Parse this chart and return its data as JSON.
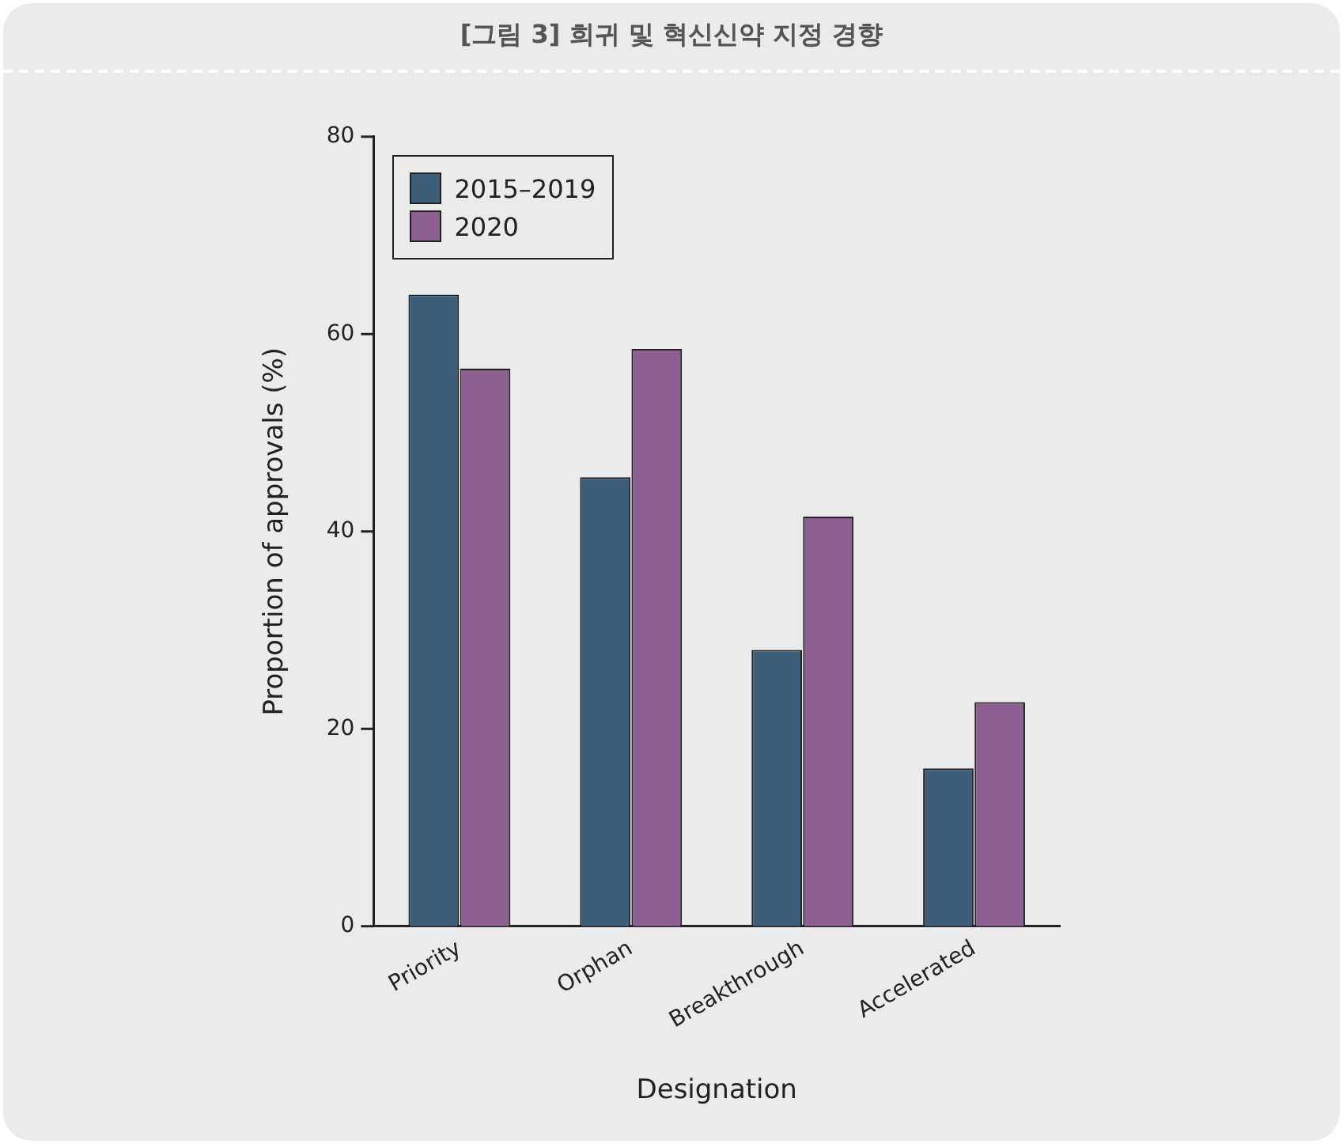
{
  "chart_data": {
    "type": "bar",
    "title": "[그림 3] 희귀 및 혁신신약 지정 경향",
    "xlabel": "Designation",
    "ylabel": "Proportion of approvals (%)",
    "categories": [
      "Priority",
      "Orphan",
      "Breakthrough",
      "Accelerated"
    ],
    "series": [
      {
        "name": "2015–2019",
        "color": "#3d5f7a",
        "values": [
          64,
          45.5,
          28,
          16
        ]
      },
      {
        "name": "2020",
        "color": "#8e5f91",
        "values": [
          56.5,
          58.5,
          41.5,
          22.7
        ]
      }
    ],
    "ylim": [
      0,
      80
    ],
    "yticks": [
      0,
      20,
      40,
      60,
      80
    ],
    "grid": false,
    "legend": "top left"
  }
}
